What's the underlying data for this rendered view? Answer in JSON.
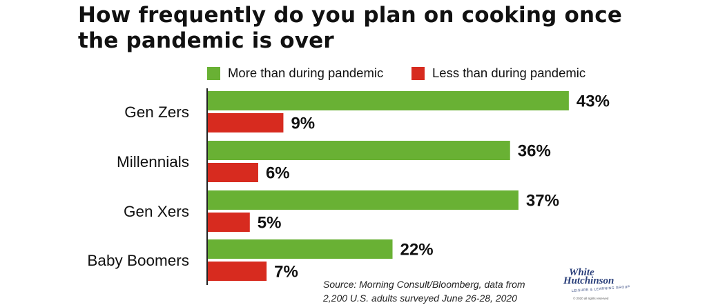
{
  "title_line1": "How frequently do you plan on cooking once",
  "title_line2": "the pandemic is over",
  "source_line1": "Source: Morning Consult/Bloomberg, data from",
  "source_line2": "2,200 U.S. adults surveyed June 26-28, 2020",
  "logo": {
    "line1": "White",
    "line2": "Hutchinson",
    "tagline": "LEISURE & LEARNING GROUP",
    "copyright": "© 2020 all rights reserved"
  },
  "colors": {
    "more": "#69b134",
    "less": "#d72b1f",
    "axis": "#222222"
  },
  "chart_data": {
    "type": "bar",
    "orientation": "horizontal",
    "title": "How frequently do you plan on cooking once the pandemic is over",
    "categories": [
      "Gen Zers",
      "Millennials",
      "Gen Xers",
      "Baby Boomers"
    ],
    "series": [
      {
        "name": "More than during pandemic",
        "values": [
          43,
          36,
          37,
          22
        ],
        "labels": [
          "43%",
          "36%",
          "37%",
          "22%"
        ]
      },
      {
        "name": "Less than during pandemic",
        "values": [
          9,
          6,
          5,
          7
        ],
        "labels": [
          "9%",
          "6%",
          "5%",
          "7%"
        ]
      }
    ],
    "value_unit": "%",
    "xlim": [
      0,
      50
    ],
    "grid": false,
    "legend": "top"
  }
}
